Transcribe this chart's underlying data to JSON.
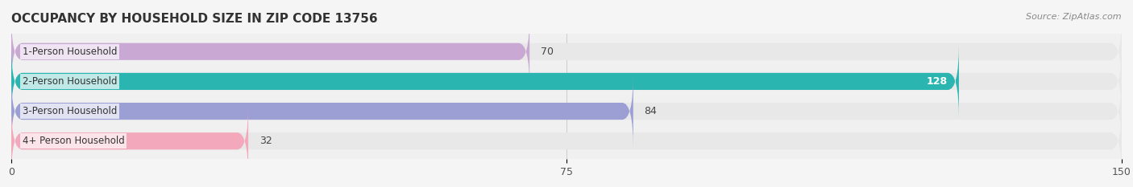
{
  "title": "OCCUPANCY BY HOUSEHOLD SIZE IN ZIP CODE 13756",
  "source": "Source: ZipAtlas.com",
  "categories": [
    "1-Person Household",
    "2-Person Household",
    "3-Person Household",
    "4+ Person Household"
  ],
  "values": [
    70,
    128,
    84,
    32
  ],
  "bar_colors": [
    "#c9a8d4",
    "#2ab5b0",
    "#9b9fd4",
    "#f4a8bb"
  ],
  "label_colors": [
    "#555555",
    "#ffffff",
    "#555555",
    "#555555"
  ],
  "xlim": [
    0,
    150
  ],
  "xticks": [
    0,
    75,
    150
  ],
  "background_color": "#f0f0f0",
  "bar_background_color": "#e8e8e8",
  "title_fontsize": 11,
  "source_fontsize": 8,
  "label_fontsize": 8.5,
  "value_fontsize": 9,
  "bar_height": 0.55,
  "figsize": [
    14.06,
    2.33
  ],
  "dpi": 100
}
